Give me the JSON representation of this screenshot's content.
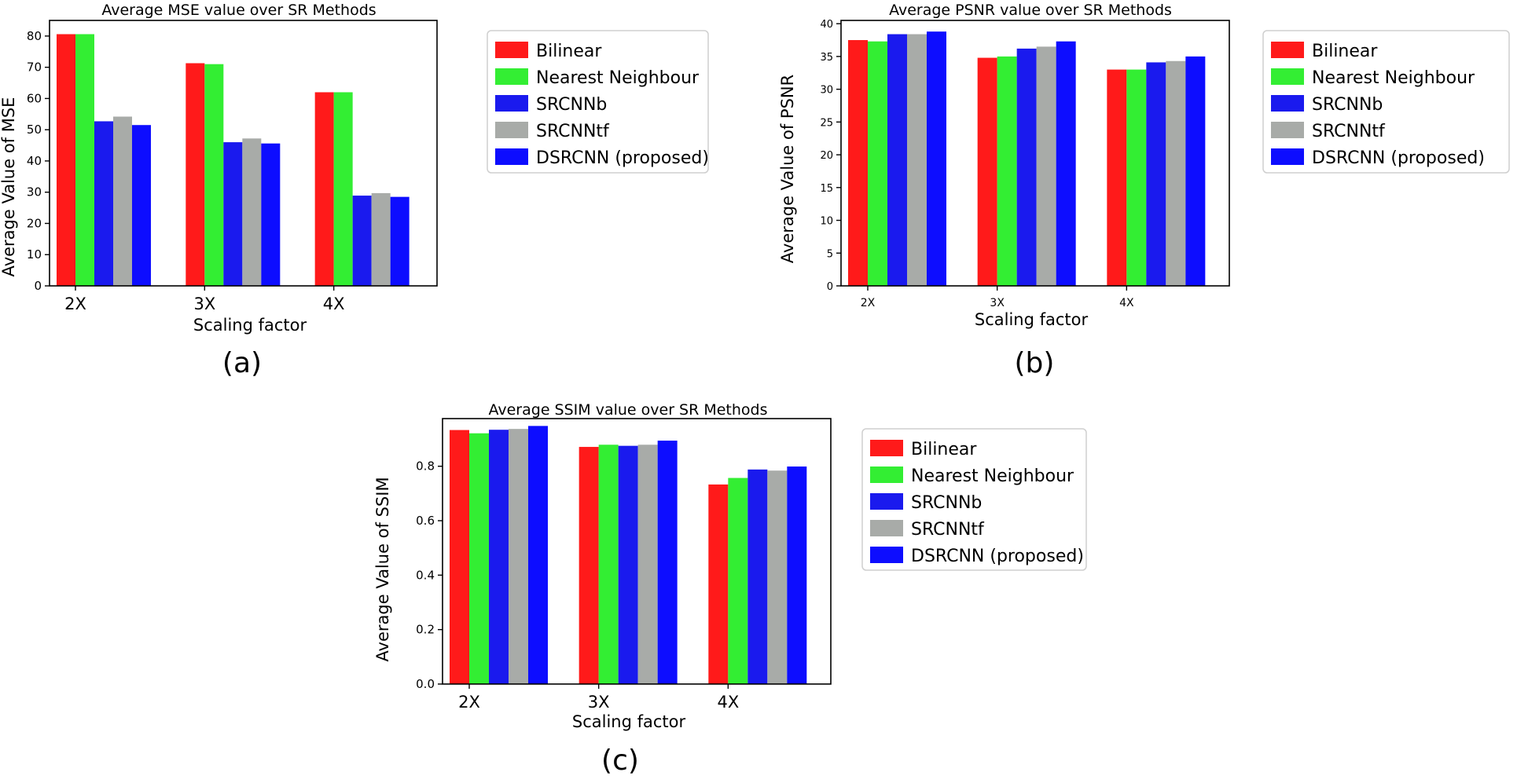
{
  "legend_colors": {
    "Bilinear": "#ff1a1a",
    "Nearest Neighbour": "#33ee33",
    "SRCNNb": "#1a1aee",
    "SRCNNtf": "#a8aba8",
    "DSRCNN (proposed)": "#0d0dff"
  },
  "chart_data": [
    {
      "type": "bar",
      "panel": "(a)",
      "title": "Average MSE value over SR Methods",
      "xlabel": "Scaling factor",
      "ylabel": "Average Value of MSE",
      "ylim": [
        0,
        85
      ],
      "yticks": [
        0,
        10,
        20,
        30,
        40,
        50,
        60,
        70,
        80
      ],
      "ytick_labels": [
        "0",
        "10",
        "20",
        "30",
        "40",
        "50",
        "60",
        "70",
        "80"
      ],
      "categories": [
        "2X",
        "3X",
        "4X"
      ],
      "series": [
        {
          "name": "Bilinear",
          "values": [
            80.6,
            71.3,
            62.0
          ]
        },
        {
          "name": "Nearest Neighbour",
          "values": [
            80.6,
            71.0,
            62.0
          ]
        },
        {
          "name": "SRCNNb",
          "values": [
            52.7,
            46.0,
            28.9
          ]
        },
        {
          "name": "SRCNNtf",
          "values": [
            54.2,
            47.2,
            29.7
          ]
        },
        {
          "name": "DSRCNN (proposed)",
          "values": [
            51.5,
            45.6,
            28.5
          ]
        }
      ]
    },
    {
      "type": "bar",
      "panel": "(b)",
      "title": "Average PSNR value over SR Methods",
      "xlabel": "Scaling factor",
      "ylabel": "Average Value of PSNR",
      "ylim": [
        0,
        40.5
      ],
      "yticks": [
        0,
        5,
        10,
        15,
        20,
        25,
        30,
        35,
        40
      ],
      "ytick_labels": [
        "0",
        "5",
        "10",
        "15",
        "20",
        "25",
        "30",
        "35",
        "40"
      ],
      "categories": [
        "2X",
        "3X",
        "4X"
      ],
      "series": [
        {
          "name": "Bilinear",
          "values": [
            37.5,
            34.8,
            33.0
          ]
        },
        {
          "name": "Nearest Neighbour",
          "values": [
            37.3,
            35.0,
            33.0
          ]
        },
        {
          "name": "SRCNNb",
          "values": [
            38.4,
            36.2,
            34.1
          ]
        },
        {
          "name": "SRCNNtf",
          "values": [
            38.4,
            36.5,
            34.3
          ]
        },
        {
          "name": "DSRCNN (proposed)",
          "values": [
            38.8,
            37.3,
            35.0
          ]
        }
      ]
    },
    {
      "type": "bar",
      "panel": "(c)",
      "title": "Average SSIM value over SR Methods",
      "xlabel": "Scaling factor",
      "ylabel": "Average Value of SSIM",
      "ylim": [
        0,
        0.975
      ],
      "yticks": [
        0,
        0.2,
        0.4,
        0.6,
        0.8
      ],
      "ytick_labels": [
        "0.0",
        "0.2",
        "0.4",
        "0.6",
        "0.8"
      ],
      "categories": [
        "2X",
        "3X",
        "4X"
      ],
      "series": [
        {
          "name": "Bilinear",
          "values": [
            0.933,
            0.871,
            0.733
          ]
        },
        {
          "name": "Nearest Neighbour",
          "values": [
            0.921,
            0.879,
            0.757
          ]
        },
        {
          "name": "SRCNNb",
          "values": [
            0.934,
            0.875,
            0.788
          ]
        },
        {
          "name": "SRCNNtf",
          "values": [
            0.937,
            0.879,
            0.784
          ]
        },
        {
          "name": "DSRCNN (proposed)",
          "values": [
            0.948,
            0.894,
            0.799
          ]
        }
      ]
    }
  ]
}
